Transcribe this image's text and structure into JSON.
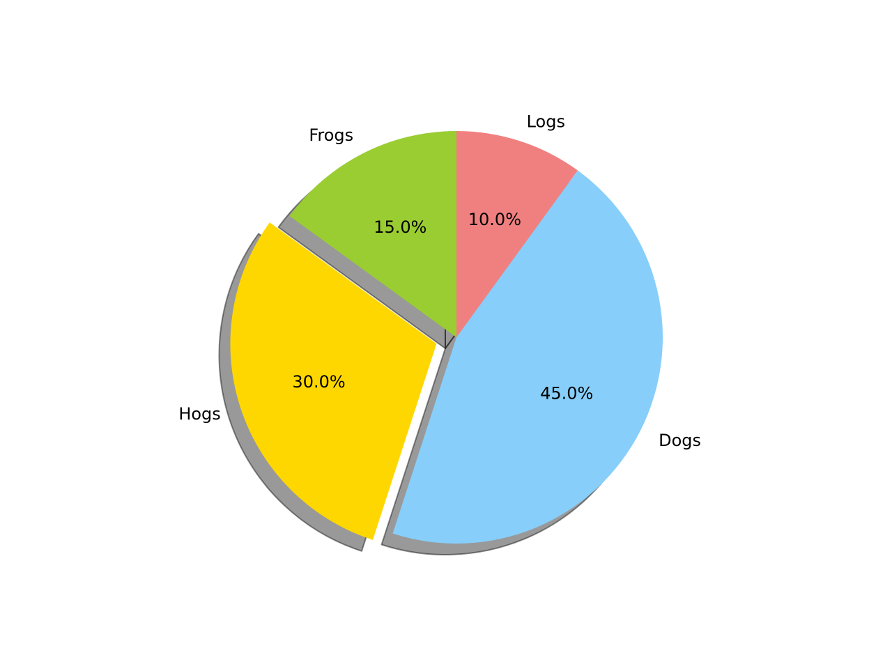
{
  "chart_data": {
    "type": "pie",
    "title": "",
    "start_angle_deg": 90,
    "direction": "counterclockwise",
    "shadow": true,
    "slices": [
      {
        "label": "Frogs",
        "value": 15,
        "pct_label": "15.0%",
        "color": "#9acd32",
        "exploded": false
      },
      {
        "label": "Hogs",
        "value": 30,
        "pct_label": "30.0%",
        "color": "#ffd700",
        "exploded": true
      },
      {
        "label": "Dogs",
        "value": 45,
        "pct_label": "45.0%",
        "color": "#87cefa",
        "exploded": false
      },
      {
        "label": "Logs",
        "value": 10,
        "pct_label": "10.0%",
        "color": "#f08080",
        "exploded": false
      }
    ]
  }
}
